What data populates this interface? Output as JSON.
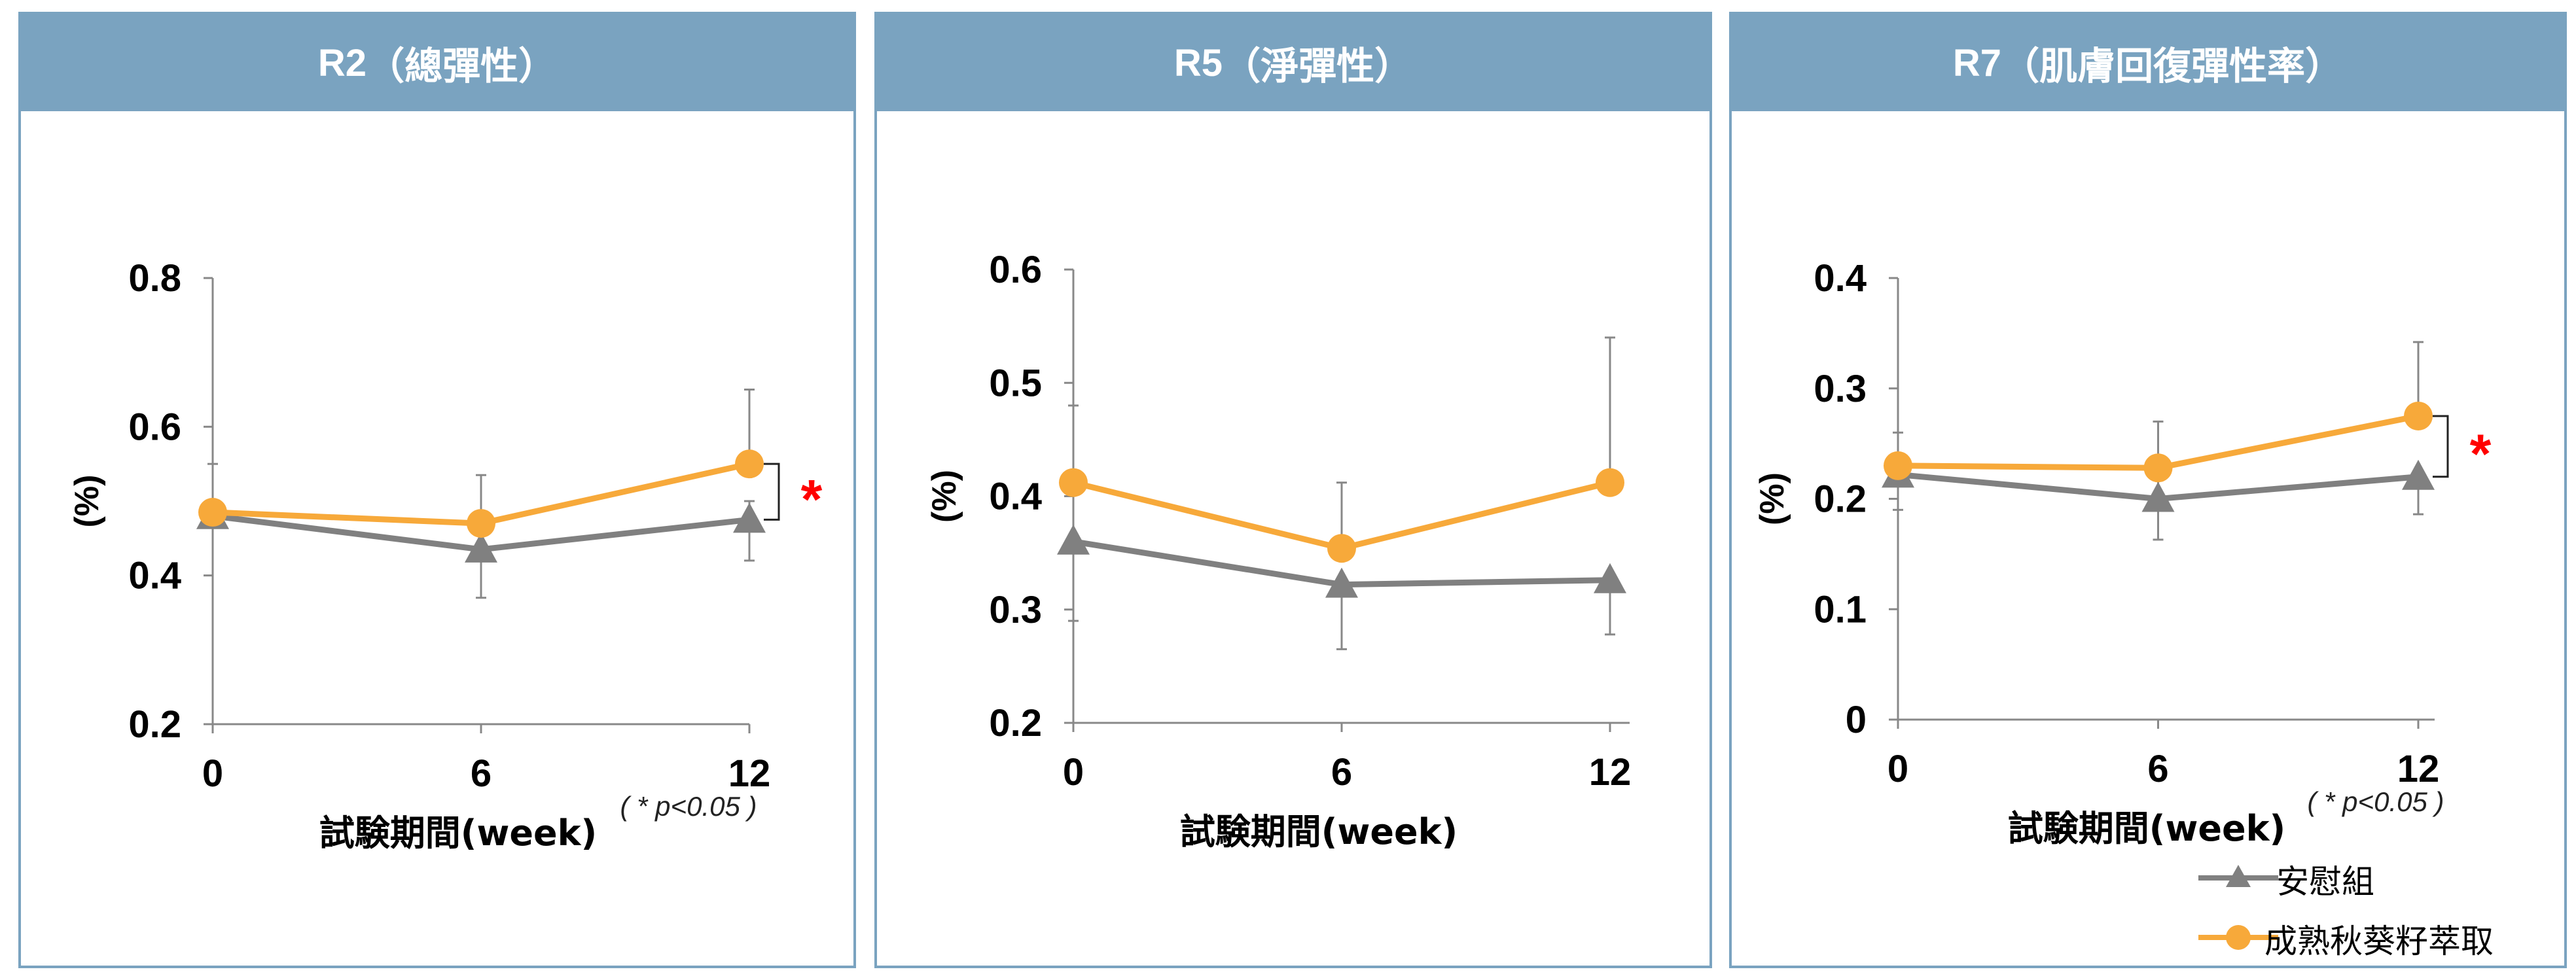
{
  "colors": {
    "header_bg": "#7aa3c0",
    "placebo": "#808080",
    "extract": "#f7a93a",
    "significance": "#ff0000"
  },
  "panels": [
    {
      "title_code": "R2",
      "title_text": "（總彈性）"
    },
    {
      "title_code": "R5",
      "title_text": "（淨彈性）"
    },
    {
      "title_code": "R7",
      "title_text": "（肌膚回復彈性率）"
    }
  ],
  "legend": {
    "placebo": "安慰組",
    "extract": "成熟秋葵籽萃取"
  },
  "chart_data": [
    {
      "type": "line",
      "title": "R2（總彈性）",
      "xlabel": "試験期間(week)",
      "ylabel": "(%)",
      "x": [
        0,
        6,
        12
      ],
      "x_tick_labels": [
        "0",
        "6",
        "12"
      ],
      "ylim": [
        0.2,
        0.8
      ],
      "y_ticks": [
        0.2,
        0.4,
        0.6,
        0.8
      ],
      "y_tick_labels": [
        "0.2",
        "0.4",
        "0.6",
        "0.8"
      ],
      "grid": false,
      "series": [
        {
          "name": "安慰組",
          "marker": "triangle",
          "values": [
            0.48,
            0.435,
            0.475
          ],
          "error_upper": [
            0.55,
            0.535,
            0.5
          ],
          "error_lower": [
            0.48,
            0.37,
            0.42
          ]
        },
        {
          "name": "成熟秋葵籽萃取",
          "marker": "circle",
          "values": [
            0.485,
            0.47,
            0.55
          ],
          "error_upper": [
            0.485,
            0.47,
            0.65
          ],
          "error_lower": [
            0.485,
            0.47,
            0.55
          ]
        }
      ],
      "significance": {
        "mark": "*",
        "at_x": 12
      },
      "note": "( * p<0.05 )"
    },
    {
      "type": "line",
      "title": "R5（淨彈性）",
      "xlabel": "試験期間(week)",
      "ylabel": "(%)",
      "x": [
        0,
        6,
        12
      ],
      "x_tick_labels": [
        "0",
        "6",
        "12"
      ],
      "ylim": [
        0.2,
        0.6
      ],
      "y_ticks": [
        0.2,
        0.3,
        0.4,
        0.5,
        0.6
      ],
      "y_tick_labels": [
        "0.2",
        "0.3",
        "0.4",
        "0.5",
        "0.6"
      ],
      "grid": false,
      "series": [
        {
          "name": "安慰組",
          "marker": "triangle",
          "values": [
            0.36,
            0.322,
            0.326
          ],
          "error_upper": [
            0.36,
            0.322,
            0.326
          ],
          "error_lower": [
            0.29,
            0.265,
            0.278
          ]
        },
        {
          "name": "成熟秋葵籽萃取",
          "marker": "circle",
          "values": [
            0.412,
            0.354,
            0.412
          ],
          "error_upper": [
            0.48,
            0.412,
            0.54
          ],
          "error_lower": [
            0.412,
            0.354,
            0.412
          ]
        }
      ]
    },
    {
      "type": "line",
      "title": "R7（肌膚回復彈性率）",
      "xlabel": "試験期間(week)",
      "ylabel": "(%)",
      "x": [
        0,
        6,
        12
      ],
      "x_tick_labels": [
        "0",
        "6",
        "12"
      ],
      "ylim": [
        0,
        0.4
      ],
      "y_ticks": [
        0,
        0.1,
        0.2,
        0.3,
        0.4
      ],
      "y_tick_labels": [
        "0",
        "0.1",
        "0.2",
        "0.3",
        "0.4"
      ],
      "grid": false,
      "series": [
        {
          "name": "安慰組",
          "marker": "triangle",
          "values": [
            0.222,
            0.2,
            0.22
          ],
          "error_upper": [
            0.26,
            0.27,
            0.22
          ],
          "error_lower": [
            0.19,
            0.163,
            0.186
          ]
        },
        {
          "name": "成熟秋葵籽萃取",
          "marker": "circle",
          "values": [
            0.23,
            0.228,
            0.275
          ],
          "error_upper": [
            0.23,
            0.228,
            0.342
          ],
          "error_lower": [
            0.23,
            0.228,
            0.275
          ]
        }
      ],
      "significance": {
        "mark": "*",
        "at_x": 12
      },
      "note": "( * p<0.05 )"
    }
  ]
}
